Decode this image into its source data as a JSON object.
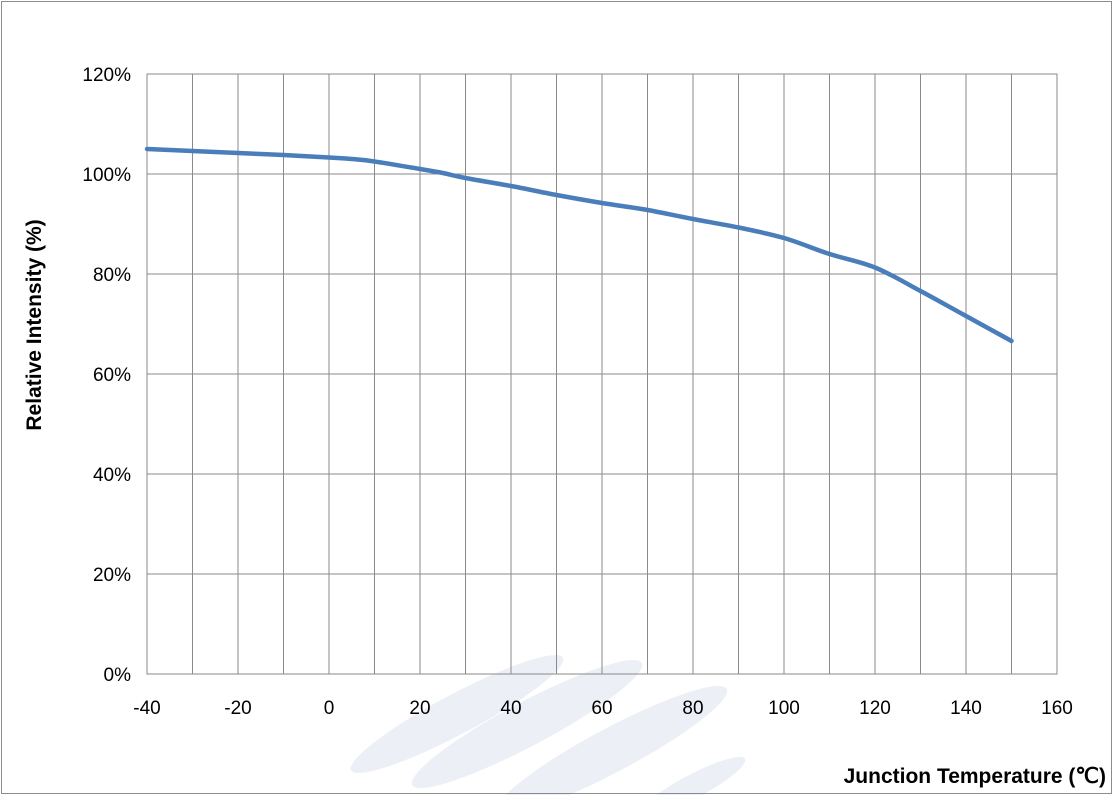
{
  "chart_data": {
    "type": "line",
    "title": "",
    "xlabel": "Junction Temperature (℃)",
    "ylabel": "Relative Intensity (%)",
    "xlim": [
      -40,
      160
    ],
    "ylim": [
      0,
      120
    ],
    "x_ticks": [
      -40,
      -20,
      0,
      20,
      40,
      60,
      80,
      100,
      120,
      140,
      160
    ],
    "x_tick_labels": [
      "-40",
      "-20",
      "0",
      "20",
      "40",
      "60",
      "80",
      "100",
      "120",
      "140",
      "160"
    ],
    "y_ticks": [
      0,
      20,
      40,
      60,
      80,
      100,
      120
    ],
    "y_tick_labels": [
      "0%",
      "20%",
      "40%",
      "60%",
      "80%",
      "100%",
      "120%"
    ],
    "grid": true,
    "legend": "none",
    "series": [
      {
        "color": "#4a7ebb",
        "x": [
          -40,
          -30,
          -20,
          -10,
          0,
          5,
          10,
          20,
          25,
          30,
          40,
          50,
          60,
          70,
          80,
          90,
          100,
          110,
          120,
          130,
          140,
          150
        ],
        "y": [
          105,
          104.6,
          104.2,
          103.8,
          103.3,
          103,
          102.5,
          101,
          100.2,
          99.2,
          97.6,
          95.8,
          94.2,
          92.8,
          91,
          89.3,
          87.2,
          84,
          81.3,
          76.6,
          71.6,
          66.6
        ]
      }
    ]
  }
}
